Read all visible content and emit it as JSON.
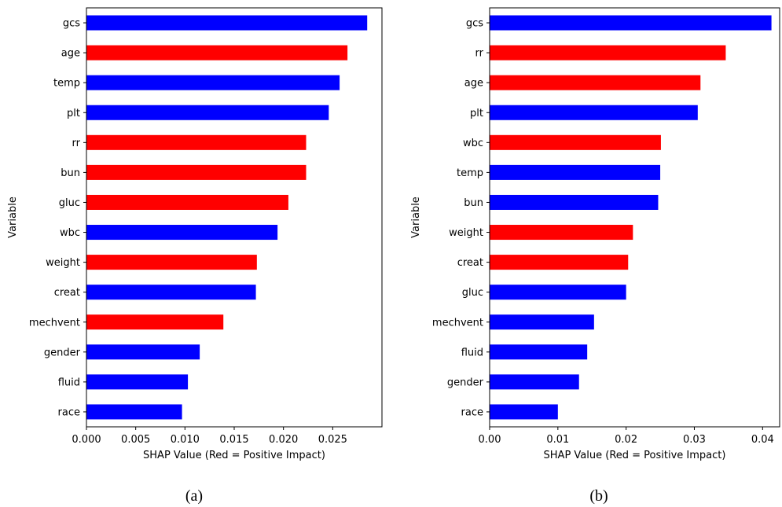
{
  "chart_data": [
    {
      "type": "bar",
      "orientation": "horizontal",
      "caption": "(a)",
      "xlabel": "SHAP Value (Red = Positive Impact)",
      "ylabel": "Variable",
      "xlim": [
        0,
        0.03
      ],
      "xticks": [
        "0.000",
        "0.005",
        "0.010",
        "0.015",
        "0.020",
        "0.025"
      ],
      "xtick_values": [
        0,
        0.005,
        0.01,
        0.015,
        0.02,
        0.025
      ],
      "categories": [
        "gcs",
        "age",
        "temp",
        "plt",
        "rr",
        "bun",
        "gluc",
        "wbc",
        "weight",
        "creat",
        "mechvent",
        "gender",
        "fluid",
        "race"
      ],
      "values": [
        0.0285,
        0.0265,
        0.0257,
        0.0246,
        0.0223,
        0.0223,
        0.0205,
        0.0194,
        0.0173,
        0.0172,
        0.0139,
        0.0115,
        0.0103,
        0.0097
      ],
      "colors": [
        "#0000ff",
        "#ff0000",
        "#0000ff",
        "#0000ff",
        "#ff0000",
        "#ff0000",
        "#ff0000",
        "#0000ff",
        "#ff0000",
        "#0000ff",
        "#ff0000",
        "#0000ff",
        "#0000ff",
        "#0000ff"
      ],
      "grid": false
    },
    {
      "type": "bar",
      "orientation": "horizontal",
      "caption": "(b)",
      "xlabel": "SHAP Value (Red = Positive Impact)",
      "ylabel": "Variable",
      "xlim": [
        0,
        0.0425
      ],
      "xticks": [
        "0.00",
        "0.01",
        "0.02",
        "0.03",
        "0.04"
      ],
      "xtick_values": [
        0,
        0.01,
        0.02,
        0.03,
        0.04
      ],
      "categories": [
        "gcs",
        "rr",
        "age",
        "plt",
        "wbc",
        "temp",
        "bun",
        "weight",
        "creat",
        "gluc",
        "mechvent",
        "fluid",
        "gender",
        "race"
      ],
      "values": [
        0.0413,
        0.0346,
        0.0309,
        0.0305,
        0.0251,
        0.025,
        0.0247,
        0.021,
        0.0203,
        0.02,
        0.0153,
        0.0143,
        0.0131,
        0.01
      ],
      "colors": [
        "#0000ff",
        "#ff0000",
        "#ff0000",
        "#0000ff",
        "#ff0000",
        "#0000ff",
        "#0000ff",
        "#ff0000",
        "#ff0000",
        "#0000ff",
        "#0000ff",
        "#0000ff",
        "#0000ff",
        "#0000ff"
      ],
      "grid": false
    }
  ]
}
